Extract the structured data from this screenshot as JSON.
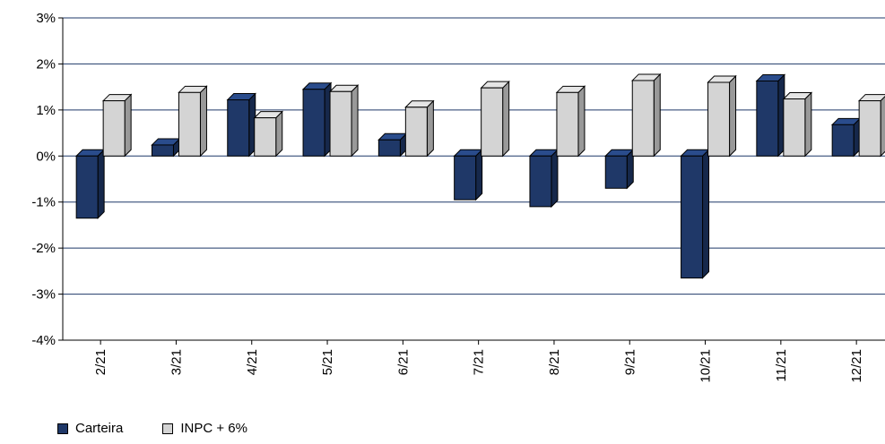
{
  "chart_data": {
    "type": "bar",
    "categories": [
      "2/21",
      "3/21",
      "4/21",
      "5/21",
      "6/21",
      "7/21",
      "8/21",
      "9/21",
      "10/21",
      "11/21",
      "12/21"
    ],
    "series": [
      {
        "name": "Carteira",
        "color": "#1f3868",
        "values": [
          -1.35,
          0.24,
          1.22,
          1.45,
          0.35,
          -0.95,
          -1.1,
          -0.7,
          -2.65,
          1.63,
          0.68
        ]
      },
      {
        "name": "INPC + 6%",
        "color": "#d4d4d4",
        "values": [
          1.2,
          1.38,
          0.83,
          1.4,
          1.06,
          1.48,
          1.38,
          1.64,
          1.6,
          1.24,
          1.2
        ]
      }
    ],
    "ylim": [
      -4,
      3
    ],
    "yticks": [
      3,
      2,
      1,
      0,
      -1,
      -2,
      -3,
      -4
    ],
    "ytick_labels": [
      "3%",
      "2%",
      "1%",
      "0%",
      "-1%",
      "-2%",
      "-3%",
      "-4%"
    ],
    "grid": true,
    "gridline_color": "#1f3868",
    "legend_position": "bottom-left",
    "title": "",
    "xlabel": "",
    "ylabel": ""
  },
  "legend": {
    "items": [
      "Carteira",
      "INPC + 6%"
    ]
  }
}
